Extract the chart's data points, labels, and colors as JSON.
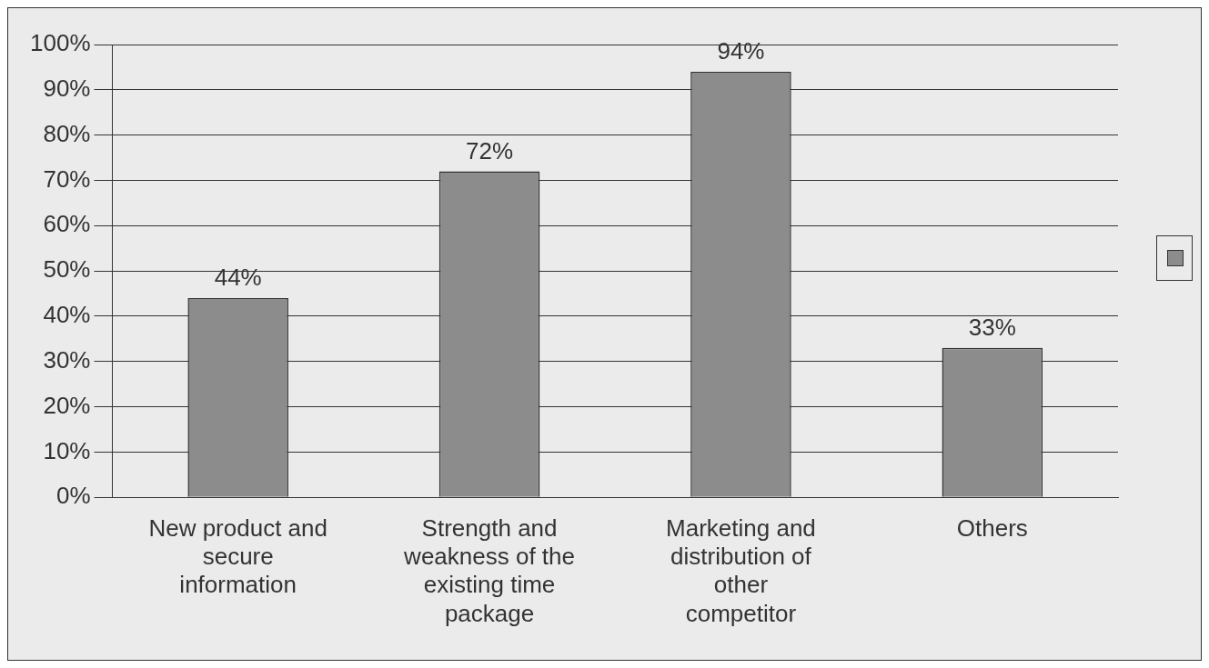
{
  "chart_data": {
    "type": "bar",
    "categories": [
      "New product and secure information",
      "Strength and weakness of the existing time package",
      "Marketing and distribution of other competitor",
      "Others"
    ],
    "series": [
      {
        "color": "#8c8c8c",
        "values": [
          44,
          72,
          94,
          33
        ],
        "value_labels": [
          "44%",
          "72%",
          "94%",
          "33%"
        ]
      }
    ],
    "ylim": [
      0,
      100
    ],
    "yticks": [
      {
        "value": 0,
        "label": "0%"
      },
      {
        "value": 10,
        "label": "10%"
      },
      {
        "value": 20,
        "label": "20%"
      },
      {
        "value": 30,
        "label": "30%"
      },
      {
        "value": 40,
        "label": "40%"
      },
      {
        "value": 50,
        "label": "50%"
      },
      {
        "value": 60,
        "label": "60%"
      },
      {
        "value": 70,
        "label": "70%"
      },
      {
        "value": 80,
        "label": "80%"
      },
      {
        "value": 90,
        "label": "90%"
      },
      {
        "value": 100,
        "label": "100%"
      }
    ],
    "grid": "y"
  }
}
